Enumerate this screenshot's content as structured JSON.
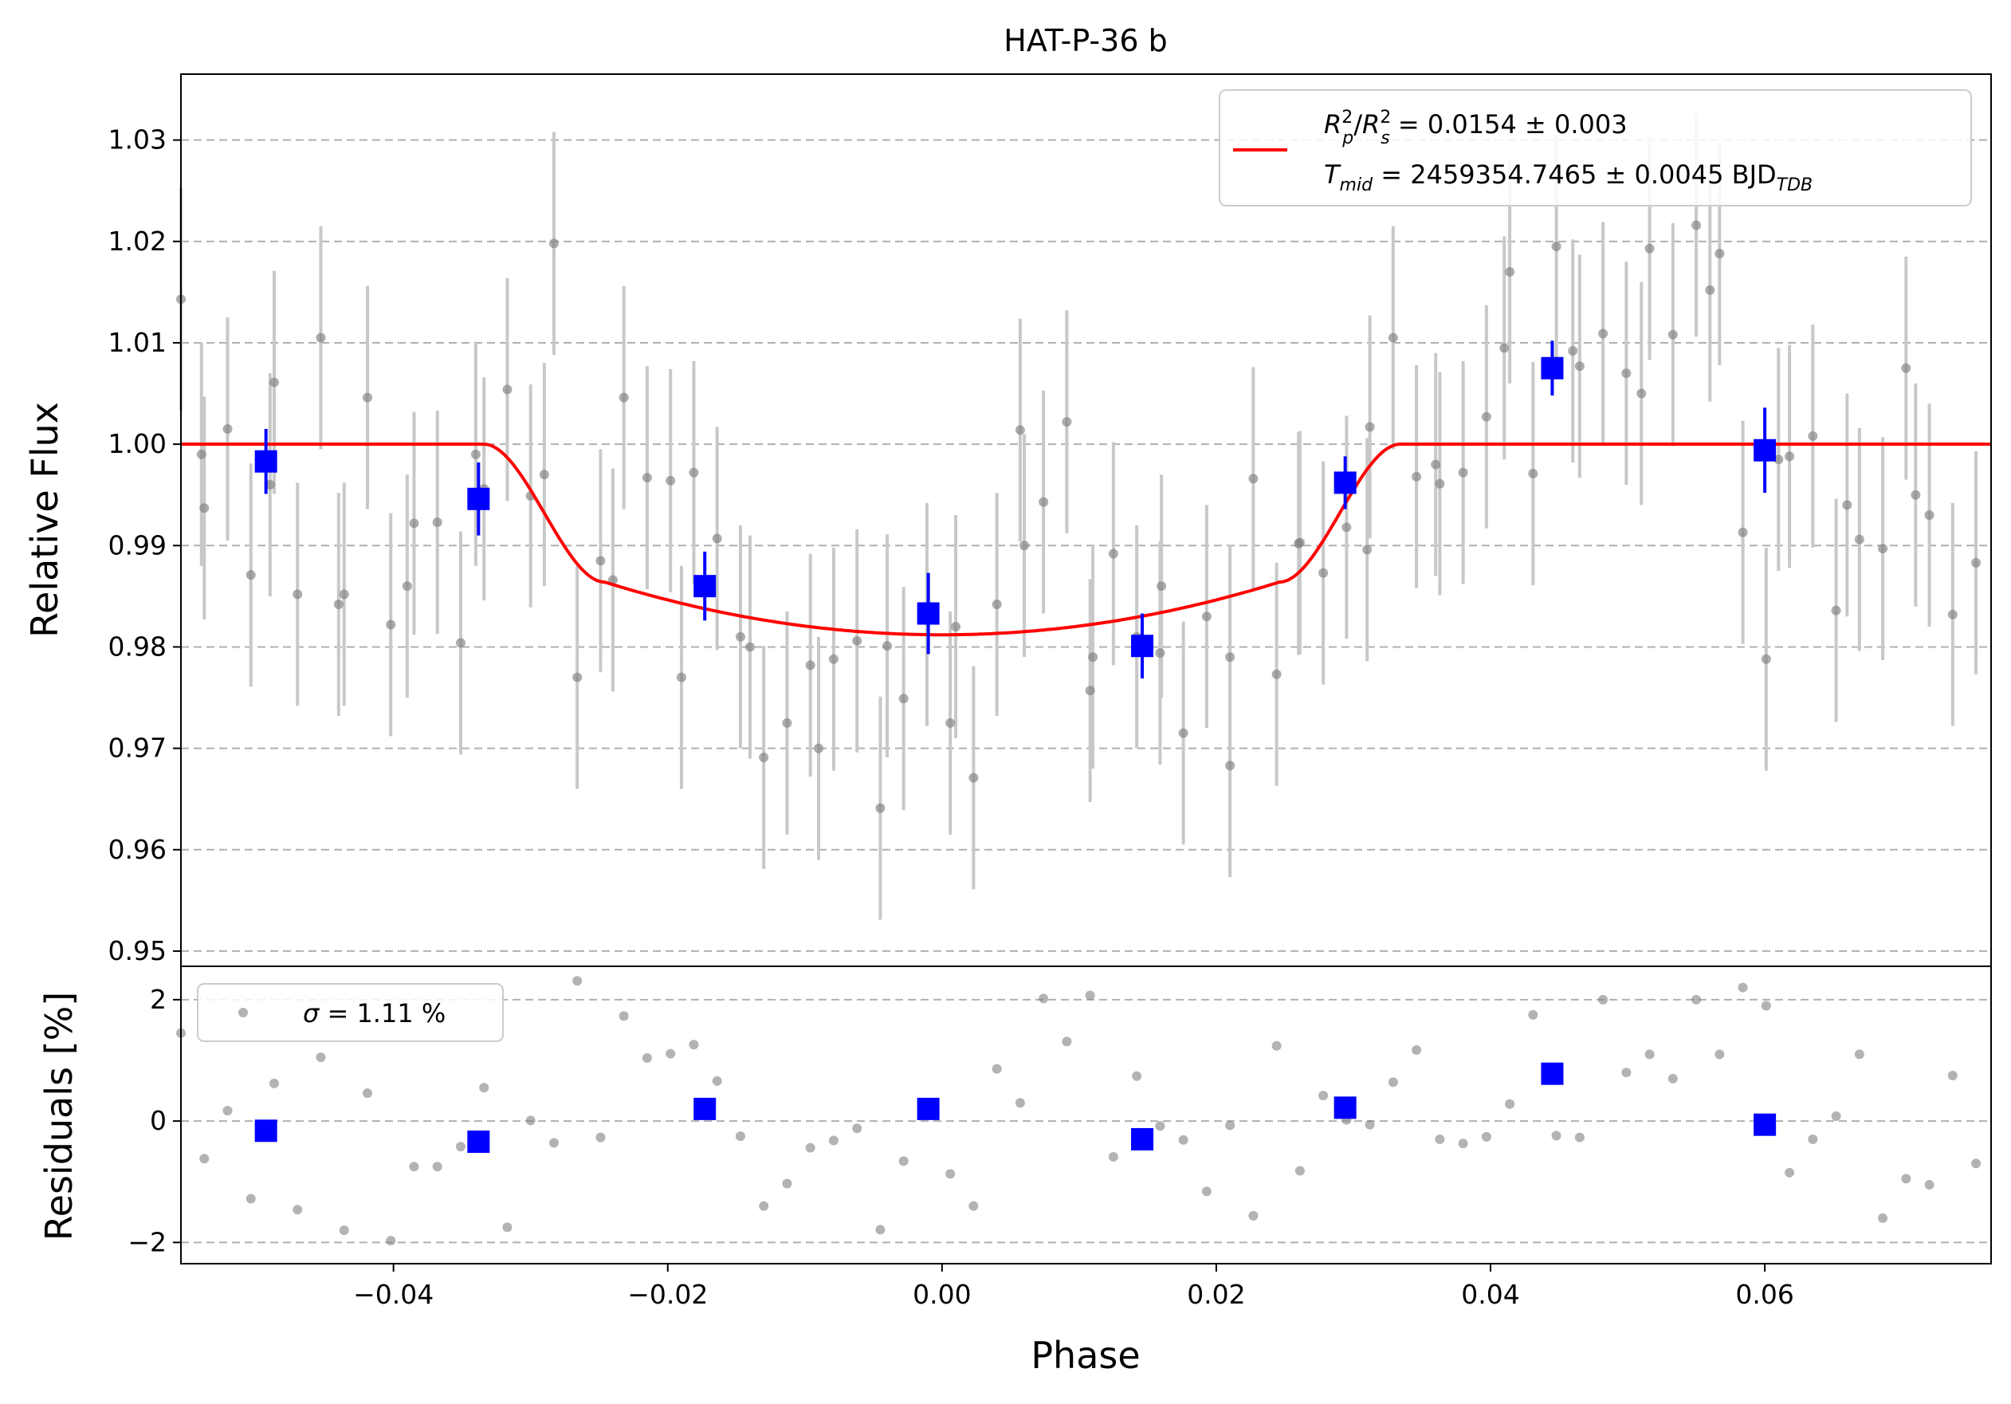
{
  "chart_data": [
    {
      "type": "scatter",
      "panel": "main",
      "title": "HAT-P-36 b",
      "xlabel": "",
      "ylabel": "Relative Flux",
      "xlim": [
        -0.0555,
        0.0765
      ],
      "ylim": [
        0.9485,
        1.0365
      ],
      "xticks": [],
      "yticks": [
        0.95,
        0.96,
        0.97,
        0.98,
        0.99,
        1.0,
        1.01,
        1.02,
        1.03
      ],
      "ytick_labels": [
        "0.95",
        "0.96",
        "0.97",
        "0.98",
        "0.99",
        "1.00",
        "1.01",
        "1.02",
        "1.03"
      ],
      "grid": "y dashed",
      "legend": {
        "placement": "top-right",
        "entries": [
          {
            "line_color": "#ff0000",
            "line1_sym": "R",
            "line1_sub_a": "p",
            "line1_sup_a": "2",
            "line1_slash": "/",
            "line1_sym_b": "R",
            "line1_sub_b": "s",
            "line1_sup_b": "2",
            "line1_rest": " = 0.0154 ± 0.003",
            "line2_sym": "T",
            "line2_sub": "mid",
            "line2_rest": " = 2459354.7465 ± 0.0045 BJD",
            "line2_unit_sub": "TDB"
          }
        ]
      },
      "colors": {
        "raw": "#808080",
        "raw_err": "#c8c8c8",
        "binned": "#0000ff",
        "model": "#ff0000"
      },
      "raw": {
        "x": [
          -0.0555,
          -0.0538,
          -0.0521,
          -0.0504,
          -0.0487,
          -0.047,
          -0.0453,
          -0.0436,
          -0.0419,
          -0.0402,
          -0.0385,
          -0.0368,
          -0.0351,
          -0.0334,
          -0.0317,
          -0.03,
          -0.0283,
          -0.0266,
          -0.0249,
          -0.0232,
          -0.0215,
          -0.0198,
          -0.0181,
          -0.0164,
          -0.0147,
          -0.013,
          -0.0113,
          -0.0096,
          -0.0079,
          -0.0062,
          -0.0045,
          -0.0028,
          -0.0011,
          0.0006,
          0.0023,
          0.004,
          0.0057,
          0.0074,
          0.0091,
          0.0108,
          0.0125,
          0.0142,
          0.0159,
          0.0176,
          0.0193,
          0.021,
          0.0227,
          0.0244,
          0.0261,
          0.0278,
          0.0295,
          0.0312,
          0.0329,
          0.0346,
          0.0363,
          0.038,
          0.0397,
          0.0414,
          0.0431,
          0.0448,
          0.0465,
          0.0482,
          0.0499,
          0.0516,
          0.0533,
          0.055,
          0.0567,
          0.0584,
          0.0601,
          0.0618,
          0.0635,
          0.0652,
          0.0669,
          0.0686,
          0.0703,
          0.072,
          0.0737,
          0.0754,
          -0.054,
          -0.049,
          -0.044,
          -0.039,
          -0.034,
          -0.029,
          -0.024,
          -0.019,
          -0.014,
          -0.009,
          -0.004,
          0.001,
          0.006,
          0.011,
          0.016,
          0.021,
          0.026,
          0.031,
          0.036,
          0.041,
          0.046,
          0.051,
          0.056,
          0.061,
          0.066,
          0.071
        ],
        "y": [
          1.0143,
          0.9937,
          1.0015,
          0.9871,
          1.0061,
          0.9852,
          1.0105,
          0.9852,
          1.0046,
          0.9822,
          0.9922,
          0.9923,
          0.9804,
          0.9956,
          1.0054,
          0.9949,
          1.0198,
          0.977,
          0.9885,
          1.0046,
          0.9967,
          0.9964,
          0.9972,
          0.9907,
          0.981,
          0.9691,
          0.9725,
          0.9782,
          0.9788,
          0.9806,
          0.9641,
          0.9749,
          0.9832,
          0.9725,
          0.9671,
          0.9842,
          1.0014,
          0.9943,
          1.0022,
          0.9757,
          0.9892,
          0.981,
          0.9794,
          0.9715,
          0.983,
          0.9683,
          0.9966,
          0.9773,
          0.9903,
          0.9873,
          0.9918,
          1.0017,
          1.0105,
          0.9968,
          0.9961,
          0.9972,
          1.0027,
          1.017,
          0.9971,
          1.0195,
          1.0077,
          1.0109,
          1.007,
          1.0193,
          1.0108,
          1.0216,
          1.0188,
          0.9913,
          0.9788,
          0.9988,
          1.0008,
          0.9836,
          0.9906,
          0.9897,
          1.0075,
          0.993,
          0.9832,
          0.9883,
          0.999,
          0.996,
          0.9842,
          0.986,
          0.999,
          0.997,
          0.9866,
          0.977,
          0.98,
          0.97,
          0.9801,
          0.982,
          0.99,
          0.979,
          0.986,
          0.979,
          0.9902,
          0.9896,
          0.998,
          1.0095,
          1.0092,
          1.005,
          1.0152,
          0.9985,
          0.994,
          0.995
        ],
        "err": 0.011
      },
      "binned": {
        "x": [
          -0.0493,
          -0.0338,
          -0.0173,
          -0.001,
          0.0146,
          0.0294,
          0.0445,
          0.06
        ],
        "y": [
          0.9983,
          0.9946,
          0.986,
          0.9833,
          0.9801,
          0.9962,
          1.0075,
          0.9994
        ],
        "err": [
          0.0032,
          0.0036,
          0.0034,
          0.004,
          0.0032,
          0.0026,
          0.0027,
          0.0042
        ]
      },
      "model": {
        "depth": 0.0188,
        "t_mid_phase": 0.0,
        "t1": -0.0334,
        "t2": -0.0246,
        "t3": 0.0246,
        "t4": 0.0334
      }
    },
    {
      "type": "scatter",
      "panel": "residuals",
      "title": "",
      "xlabel": "Phase",
      "ylabel": "Residuals [%]",
      "xlim": [
        -0.0555,
        0.0765
      ],
      "ylim": [
        -2.35,
        2.55
      ],
      "xticks": [
        -0.04,
        -0.02,
        0.0,
        0.02,
        0.04,
        0.06
      ],
      "xtick_labels": [
        "−0.04",
        "−0.02",
        "0.00",
        "0.02",
        "0.04",
        "0.06"
      ],
      "yticks": [
        -2,
        0,
        2
      ],
      "ytick_labels": [
        "−2",
        "0",
        "2"
      ],
      "grid": "y dashed",
      "legend": {
        "placement": "top-left",
        "sigma_sym": "σ",
        "sigma_rest": " = 1.11 %"
      },
      "raw": {
        "x": [
          -0.0555,
          -0.0538,
          -0.0521,
          -0.0504,
          -0.0487,
          -0.047,
          -0.0453,
          -0.0436,
          -0.0419,
          -0.0402,
          -0.0385,
          -0.0368,
          -0.0351,
          -0.0334,
          -0.0317,
          -0.03,
          -0.0283,
          -0.0266,
          -0.0249,
          -0.0232,
          -0.0215,
          -0.0198,
          -0.0181,
          -0.0164,
          -0.0147,
          -0.013,
          -0.0113,
          -0.0096,
          -0.0079,
          -0.0062,
          -0.0045,
          -0.0028,
          -0.0011,
          0.0006,
          0.0023,
          0.004,
          0.0057,
          0.0074,
          0.0091,
          0.0108,
          0.0125,
          0.0142,
          0.0159,
          0.0176,
          0.0193,
          0.021,
          0.0227,
          0.0244,
          0.0261,
          0.0278,
          0.0295,
          0.0312,
          0.0329,
          0.0346,
          0.0363,
          0.038,
          0.0397,
          0.0414,
          0.0431,
          0.0448,
          0.0465,
          0.0482,
          0.0499,
          0.0516,
          0.0533,
          0.055,
          0.0567,
          0.0584,
          0.0601,
          0.0618,
          0.0635,
          0.0652,
          0.0669,
          0.0686,
          0.0703,
          0.072,
          0.0737,
          0.0754
        ],
        "y": [
          1.45,
          -0.62,
          0.17,
          -1.28,
          0.62,
          -1.46,
          1.05,
          -1.8,
          0.46,
          -1.97,
          -0.75,
          -0.75,
          -0.42,
          0.55,
          -1.75,
          0.01,
          -0.36,
          2.31,
          -0.27,
          1.73,
          1.04,
          1.11,
          1.26,
          0.66,
          -0.25,
          -1.4,
          -1.03,
          -0.44,
          -0.32,
          -0.12,
          -1.79,
          -0.66,
          0.2,
          -0.87,
          -1.4,
          0.86,
          0.3,
          2.02,
          1.31,
          2.07,
          -0.59,
          0.74,
          -0.08,
          -0.31,
          -1.16,
          -0.07,
          -1.56,
          1.24,
          -0.82,
          0.42,
          0.02,
          -0.06,
          0.64,
          1.17,
          -0.3,
          -0.37,
          -0.26,
          0.28,
          1.75,
          -0.24,
          -0.27,
          2.0,
          0.8,
          1.1,
          0.7,
          2.0,
          1.1,
          2.2,
          1.9,
          -0.85,
          -0.3,
          0.08,
          1.1,
          -1.6,
          -0.95,
          -1.05,
          0.75,
          -0.7
        ]
      },
      "binned": {
        "x": [
          -0.0493,
          -0.0338,
          -0.0173,
          -0.001,
          0.0146,
          0.0294,
          0.0445,
          0.06
        ],
        "y": [
          -0.16,
          -0.34,
          0.2,
          0.2,
          -0.3,
          0.22,
          0.78,
          -0.06
        ]
      }
    }
  ]
}
